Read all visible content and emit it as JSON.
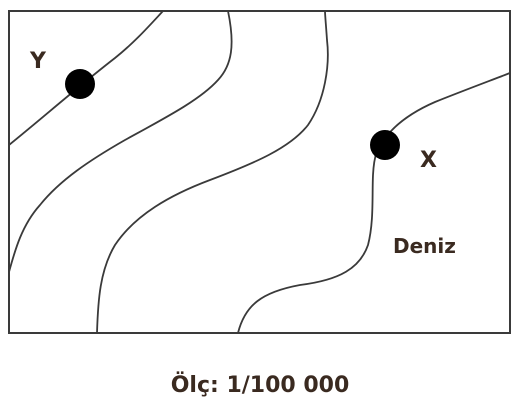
{
  "map": {
    "points": [
      {
        "id": "Y",
        "label": "Y"
      },
      {
        "id": "X",
        "label": "X"
      }
    ],
    "sea_label": "Deniz",
    "scale_label": "Ölç: 1/100 000"
  },
  "colors": {
    "contour": "#3a3a3a",
    "frame": "#3a3a3a",
    "point": "#000000",
    "text": "#3a2a20"
  }
}
